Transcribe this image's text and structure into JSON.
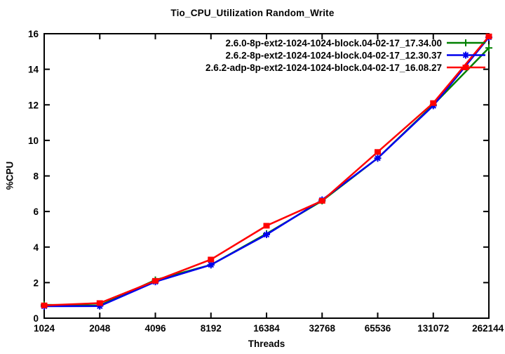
{
  "chart_data": {
    "type": "line",
    "title": "Tio_CPU_Utilization Random_Write",
    "xlabel": "Threads",
    "ylabel": "%CPU",
    "x_scale": "log2-equally-spaced",
    "categories": [
      "1024",
      "2048",
      "4096",
      "8192",
      "16384",
      "32768",
      "65536",
      "131072",
      "262144"
    ],
    "ylim": [
      0,
      16
    ],
    "yticks": [
      0,
      2,
      4,
      6,
      8,
      10,
      12,
      14,
      16
    ],
    "grid": false,
    "legend_position": "top-right-inside",
    "axis_color": "#000000",
    "series": [
      {
        "name": "2.6.0-8p-ext2-1024-1024-block.04-02-17_17.34.00",
        "color": "#008000",
        "marker": "plus",
        "values": [
          0.75,
          0.72,
          2.15,
          3.0,
          4.75,
          6.6,
          9.0,
          12.0,
          15.2
        ]
      },
      {
        "name": "2.6.2-8p-ext2-1024-1024-block.04-02-17_12.30.37",
        "color": "#0000ee",
        "marker": "asterisk",
        "values": [
          0.67,
          0.68,
          2.05,
          3.0,
          4.7,
          6.65,
          9.0,
          11.95,
          15.8
        ]
      },
      {
        "name": "2.6.2-adp-8p-ext2-1024-1024-block.04-02-17_16.08.27",
        "color": "#ff0000",
        "marker": "filled-square",
        "values": [
          0.72,
          0.85,
          2.1,
          3.3,
          5.2,
          6.6,
          9.35,
          12.1,
          15.85
        ]
      }
    ]
  }
}
